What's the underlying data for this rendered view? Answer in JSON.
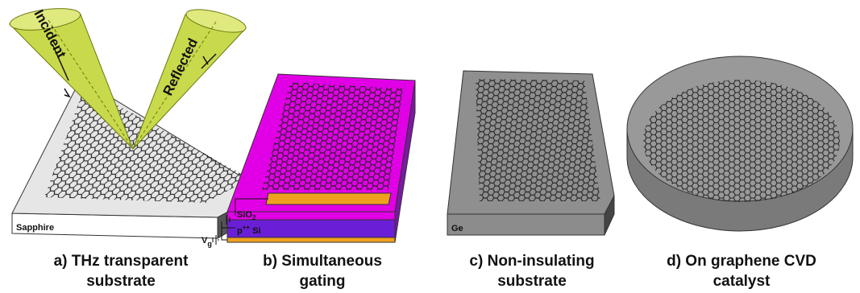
{
  "panels": [
    {
      "caption": [
        "a) THz transparent",
        "substrate"
      ],
      "substrate": "Sapphire",
      "beams": [
        "Incident",
        "Reflected"
      ]
    },
    {
      "caption": [
        "b) Simultaneous",
        "gating"
      ],
      "oxide": {
        "base": "SiO",
        "sub": "2"
      },
      "silicon": {
        "base": "p",
        "sup": "++",
        "rest": " Si"
      },
      "gate": {
        "base": "V",
        "sub": "g"
      }
    },
    {
      "caption": [
        "c) Non-insulating",
        "substrate"
      ],
      "substrate": "Ge"
    },
    {
      "caption": [
        "d) On graphene CVD",
        "catalyst"
      ]
    }
  ]
}
